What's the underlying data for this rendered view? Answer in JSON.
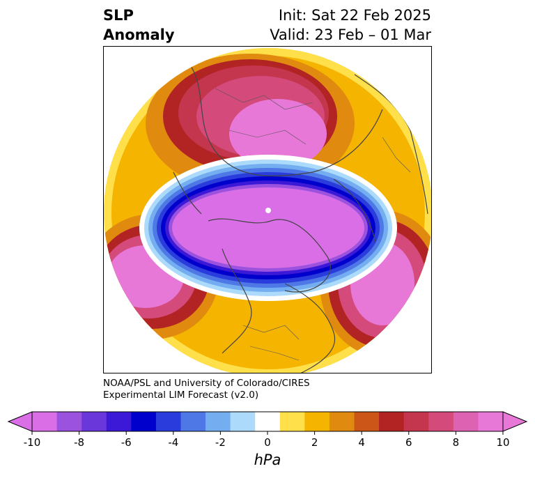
{
  "header": {
    "title_line1": "SLP",
    "title_line2": "Anomaly",
    "init": "Init: Sat 22 Feb 2025",
    "valid": "Valid: 23 Feb – 01 Mar"
  },
  "credit": {
    "line1": "NOAA/PSL and University of Colorado/CIRES",
    "line2": "Experimental LIM Forecast (v2.0)"
  },
  "colorbar": {
    "unit": "hPa",
    "tick_labels": [
      "-10",
      "-8",
      "-6",
      "-4",
      "-2",
      "0",
      "2",
      "4",
      "6",
      "8",
      "10"
    ],
    "colors": [
      "#d96ee6",
      "#9b52de",
      "#6a38da",
      "#3b19d6",
      "#0000cc",
      "#2a3cdc",
      "#4e78e6",
      "#74aef0",
      "#acdafa",
      "#ffffff",
      "#ffe04a",
      "#f4b400",
      "#e08a10",
      "#cc5518",
      "#b22424",
      "#c4364e",
      "#d44a7a",
      "#de62b2",
      "#e878d8"
    ],
    "extend_low_color": "#d96ee6",
    "extend_high_color": "#e878d8"
  }
}
